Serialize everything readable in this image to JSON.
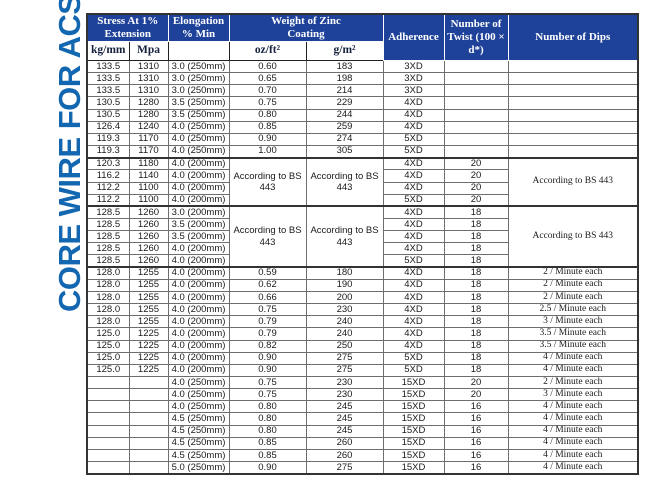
{
  "title": {
    "text": "CORE WIRE FOR ACSR"
  },
  "colors": {
    "header_blue": "#1e4299",
    "title_blue": "#1366b0",
    "subheader_ink": "#14203c"
  },
  "table": {
    "header": {
      "stress": "Stress At 1% Extension",
      "elongation": "Elongation % Min",
      "zinc": "Weight of Zinc Coating",
      "adherence": "Adherence",
      "twist": "Number of Twist (100 × d*)",
      "dips": "Number of Dips"
    },
    "subheader": {
      "kg": "kg/mm",
      "mpa": "Mpa",
      "oz": "oz/ft²",
      "g": "g/m²"
    },
    "merged_note": "According to BS 443",
    "group_start_rows": [
      8,
      12,
      17
    ],
    "rows": [
      [
        "133.5",
        "1310",
        "3.0 (250mm)",
        "0.60",
        "183",
        "3XD",
        "",
        ""
      ],
      [
        "133.5",
        "1310",
        "3.0 (250mm)",
        "0.65",
        "198",
        "3XD",
        "",
        ""
      ],
      [
        "133.5",
        "1310",
        "3.0 (250mm)",
        "0.70",
        "214",
        "3XD",
        "",
        ""
      ],
      [
        "130.5",
        "1280",
        "3.5 (250mm)",
        "0.75",
        "229",
        "4XD",
        "",
        ""
      ],
      [
        "130.5",
        "1280",
        "3.5 (250mm)",
        "0.80",
        "244",
        "4XD",
        "",
        ""
      ],
      [
        "126.4",
        "1240",
        "4.0 (250mm)",
        "0.85",
        "259",
        "4XD",
        "",
        ""
      ],
      [
        "119.3",
        "1170",
        "4.0 (250mm)",
        "0.90",
        "274",
        "5XD",
        "",
        ""
      ],
      [
        "119.3",
        "1170",
        "4.0 (250mm)",
        "1.00",
        "305",
        "5XD",
        "",
        ""
      ],
      [
        "120.3",
        "1180",
        "4.0 (200mm)",
        {
          "t": "According to BS 443",
          "rs": 4
        },
        {
          "t": "According to BS 443",
          "rs": 4
        },
        "4XD",
        "20",
        {
          "t": "According to BS 443",
          "rs": 4
        }
      ],
      [
        "116.2",
        "1140",
        "4.0 (200mm)",
        null,
        null,
        "4XD",
        "20",
        null
      ],
      [
        "112.2",
        "1100",
        "4.0 (200mm)",
        null,
        null,
        "4XD",
        "20",
        null
      ],
      [
        "112.2",
        "1100",
        "4.0 (200mm)",
        null,
        null,
        "5XD",
        "20",
        null
      ],
      [
        "128.5",
        "1260",
        "3.0 (200mm)",
        {
          "t": "According to BS 443",
          "rs": 5
        },
        {
          "t": "According to BS 443",
          "rs": 5
        },
        "4XD",
        "18",
        {
          "t": "According to BS 443",
          "rs": 5
        }
      ],
      [
        "128.5",
        "1260",
        "3.5 (200mm)",
        null,
        null,
        "4XD",
        "18",
        null
      ],
      [
        "128.5",
        "1260",
        "3.5 (200mm)",
        null,
        null,
        "4XD",
        "18",
        null
      ],
      [
        "128.5",
        "1260",
        "4.0 (200mm)",
        null,
        null,
        "4XD",
        "18",
        null
      ],
      [
        "128.5",
        "1260",
        "4.0 (200mm)",
        null,
        null,
        "5XD",
        "18",
        null
      ],
      [
        "128.0",
        "1255",
        "4.0 (200mm)",
        "0.59",
        "180",
        "4XD",
        "18",
        "2 / Minute each"
      ],
      [
        "128.0",
        "1255",
        "4.0 (200mm)",
        "0.62",
        "190",
        "4XD",
        "18",
        "2 / Minute each"
      ],
      [
        "128.0",
        "1255",
        "4.0 (200mm)",
        "0.66",
        "200",
        "4XD",
        "18",
        "2 / Minute each"
      ],
      [
        "128.0",
        "1255",
        "4.0 (200mm)",
        "0.75",
        "230",
        "4XD",
        "18",
        "2.5 / Minute each"
      ],
      [
        "128.0",
        "1255",
        "4.0 (200mm)",
        "0.79",
        "240",
        "4XD",
        "18",
        "3 / Minute each"
      ],
      [
        "125.0",
        "1225",
        "4.0 (200mm)",
        "0.79",
        "240",
        "4XD",
        "18",
        "3.5 / Minute each"
      ],
      [
        "125.0",
        "1225",
        "4.0 (200mm)",
        "0.82",
        "250",
        "4XD",
        "18",
        "3.5 / Minute each"
      ],
      [
        "125.0",
        "1225",
        "4.0 (200mm)",
        "0.90",
        "275",
        "5XD",
        "18",
        "4 / Minute each"
      ],
      [
        "125.0",
        "1225",
        "4.0 (200mm)",
        "0.90",
        "275",
        "5XD",
        "18",
        "4 / Minute each"
      ],
      [
        "",
        "",
        "4.0 (250mm)",
        "0.75",
        "230",
        "15XD",
        "20",
        "2 / Minute each"
      ],
      [
        "",
        "",
        "4.0 (250mm)",
        "0.75",
        "230",
        "15XD",
        "20",
        "3 / Minute each"
      ],
      [
        "",
        "",
        "4.0 (250mm)",
        "0.80",
        "245",
        "15XD",
        "16",
        "4 / Minute each"
      ],
      [
        "",
        "",
        "4.5 (250mm)",
        "0.80",
        "245",
        "15XD",
        "16",
        "4 / Minute each"
      ],
      [
        "",
        "",
        "4.5 (250mm)",
        "0.80",
        "245",
        "15XD",
        "16",
        "4 / Minute each"
      ],
      [
        "",
        "",
        "4.5 (250mm)",
        "0.85",
        "260",
        "15XD",
        "16",
        "4 / Minute each"
      ],
      [
        "",
        "",
        "4.5 (250mm)",
        "0.85",
        "260",
        "15XD",
        "16",
        "4 / Minute each"
      ],
      [
        "",
        "",
        "5.0 (250mm)",
        "0.90",
        "275",
        "15XD",
        "16",
        "4 / Minute each"
      ]
    ]
  }
}
